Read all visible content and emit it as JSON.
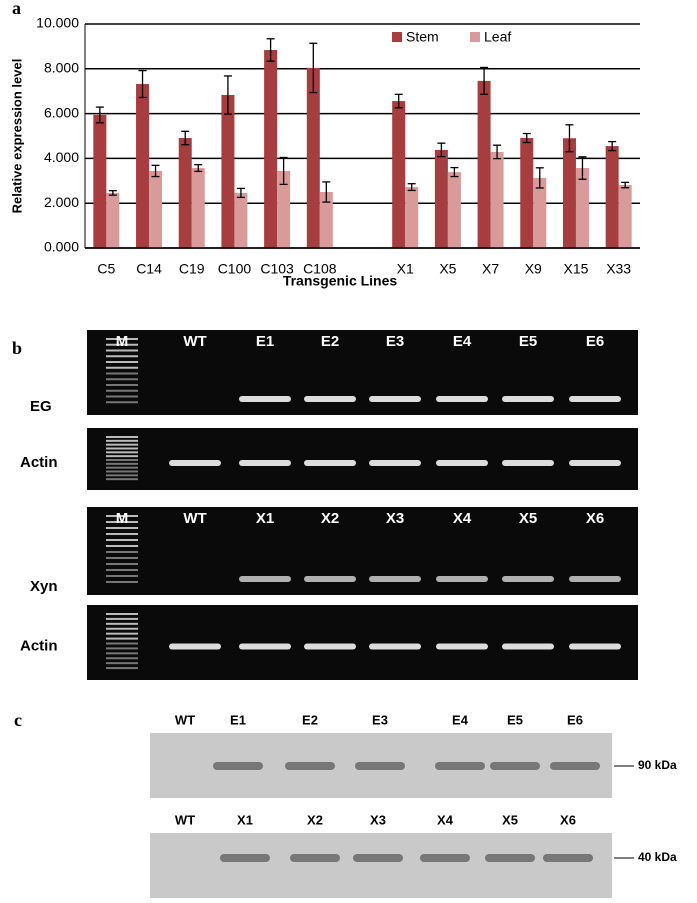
{
  "chart_data": {
    "type": "bar",
    "x_label": "Transgenic Lines",
    "y_label": "Relative expression level",
    "categories": [
      "C5",
      "C14",
      "C19",
      "C100",
      "C103",
      "C108",
      null,
      "X1",
      "X5",
      "X7",
      "X9",
      "X15",
      "X33"
    ],
    "series": [
      {
        "name": "Stem",
        "color": "#a63d3f",
        "values": [
          5.94,
          7.32,
          4.91,
          6.83,
          8.84,
          8.04,
          null,
          6.56,
          4.38,
          7.46,
          4.91,
          4.9,
          4.55
        ],
        "errors": [
          0.35,
          0.6,
          0.3,
          0.85,
          0.5,
          1.1,
          null,
          0.3,
          0.3,
          0.6,
          0.2,
          0.6,
          0.2
        ]
      },
      {
        "name": "Leaf",
        "color": "#d99a9a",
        "values": [
          2.46,
          3.44,
          3.57,
          2.46,
          3.44,
          2.5,
          null,
          2.72,
          3.39,
          4.29,
          3.13,
          3.57,
          2.81
        ],
        "errors": [
          0.1,
          0.25,
          0.15,
          0.2,
          0.6,
          0.45,
          null,
          0.15,
          0.2,
          0.3,
          0.45,
          0.5,
          0.12
        ]
      }
    ],
    "ylim": [
      0,
      10
    ],
    "yticks": [
      {
        "value": 0,
        "label": "0.000"
      },
      {
        "value": 2,
        "label": "2.000"
      },
      {
        "value": 4,
        "label": "4.000"
      },
      {
        "value": 6,
        "label": "6.000"
      },
      {
        "value": 8,
        "label": "8.000"
      },
      {
        "value": 10,
        "label": "10.000"
      }
    ],
    "grid": true,
    "legend": "upper right"
  },
  "panel_labels": [
    "a",
    "b",
    "c"
  ],
  "gels": [
    {
      "lanes": [
        "M",
        "WT",
        "E1",
        "E2",
        "E3",
        "E4",
        "E5",
        "E6"
      ],
      "rows": [
        "EG",
        "Actin"
      ]
    },
    {
      "lanes": [
        "M",
        "WT",
        "X1",
        "X2",
        "X3",
        "X4",
        "X5",
        "X6"
      ],
      "rows": [
        "Xyn",
        "Actin"
      ]
    }
  ],
  "blots": [
    {
      "lanes": [
        "WT",
        "E1",
        "E2",
        "E3",
        "E4",
        "E5",
        "E6"
      ],
      "marker": "90 kDa"
    },
    {
      "lanes": [
        "WT",
        "X1",
        "X2",
        "X3",
        "X4",
        "X5",
        "X6"
      ],
      "marker": "40 kDa"
    }
  ]
}
